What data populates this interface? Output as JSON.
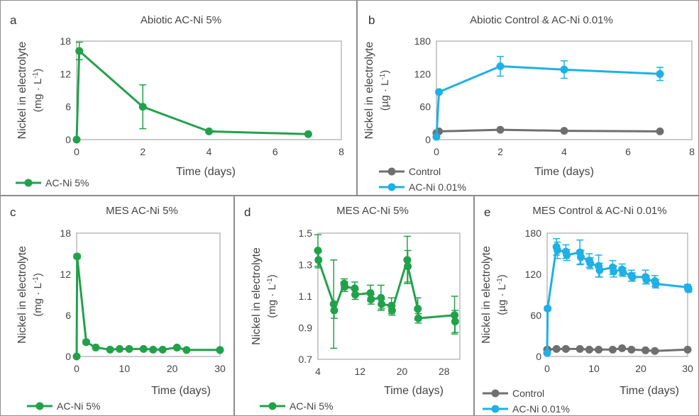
{
  "panels": [
    {
      "letter": "a",
      "title": "Abiotic AC-Ni 5%",
      "ylabel_main": "Nickel in electrolyte",
      "ylabel_unit": "(mg · L",
      "xlabel": "Time (days)",
      "yticks": [
        "0",
        "6",
        "12",
        "18"
      ],
      "xticks": [
        "0",
        "2",
        "4",
        "6",
        "8"
      ]
    },
    {
      "letter": "b",
      "title": "Abiotic Control & AC-Ni 0.01%",
      "ylabel_main": "Nickel in electrolyte",
      "ylabel_unit": "(µg · L",
      "xlabel": "Time (days)",
      "yticks": [
        "0",
        "60",
        "120",
        "180"
      ],
      "xticks": [
        "0",
        "2",
        "4",
        "6",
        "8"
      ]
    },
    {
      "letter": "c",
      "title": "MES AC-Ni 5%",
      "ylabel_main": "Nickel in electrolyte",
      "ylabel_unit": "(mg · L",
      "xlabel": "Time (days)",
      "yticks": [
        "0",
        "6",
        "12",
        "18"
      ],
      "xticks": [
        "0",
        "10",
        "20",
        "30"
      ]
    },
    {
      "letter": "d",
      "title": "MES AC-Ni 5%",
      "ylabel_main": "Nickel in electrolyte",
      "ylabel_unit": "(mg · L",
      "xlabel": "Time (days)",
      "yticks": [
        "0.7",
        "0.9",
        "1.1",
        "1.3",
        "1.5"
      ],
      "xticks": [
        "4",
        "12",
        "20",
        "28"
      ]
    },
    {
      "letter": "e",
      "title": "MES Control & AC-Ni 0.01%",
      "ylabel_main": "Nickel in electrolyte",
      "ylabel_unit": "(µg · L",
      "xlabel": "Time (days)",
      "yticks": [
        "0",
        "60",
        "120",
        "180"
      ],
      "xticks": [
        "0",
        "10",
        "20",
        "30"
      ]
    }
  ],
  "unit_exponent": "-1",
  "colors": {
    "green": "#22a14b",
    "blue": "#1fb0e6",
    "gray": "#6f6f6f",
    "frame": "#8c8c8c"
  },
  "chart_data": [
    {
      "type": "line",
      "title": "Abiotic AC-Ni 5%",
      "xlabel": "Time (days)",
      "ylabel": "Nickel in electrolyte (mg · L-1)",
      "xlim": [
        0,
        8
      ],
      "ylim": [
        0,
        18
      ],
      "legend": "bottom-left",
      "series": [
        {
          "name": "AC-Ni 5%",
          "color": "#22a14b",
          "x": [
            0,
            0.08,
            2,
            4,
            7
          ],
          "y": [
            0,
            16.2,
            6.0,
            1.5,
            1.0
          ],
          "err": [
            0,
            1.6,
            4.0,
            0.2,
            0.15
          ]
        }
      ]
    },
    {
      "type": "line",
      "title": "Abiotic Control & AC-Ni 0.01%",
      "xlabel": "Time (days)",
      "ylabel": "Nickel in electrolyte (µg · L-1)",
      "xlim": [
        0,
        8
      ],
      "ylim": [
        0,
        180
      ],
      "legend": "bottom-left",
      "series": [
        {
          "name": "Control",
          "color": "#6f6f6f",
          "x": [
            0,
            0.08,
            2,
            4,
            7
          ],
          "y": [
            12,
            15,
            18,
            16,
            15
          ],
          "err": [
            0,
            1,
            2,
            2,
            2
          ]
        },
        {
          "name": "AC-Ni 0.01%",
          "color": "#1fb0e6",
          "x": [
            0,
            0.08,
            2,
            4,
            7
          ],
          "y": [
            5,
            87,
            134,
            128,
            120
          ],
          "err": [
            0,
            3,
            18,
            16,
            12
          ]
        }
      ]
    },
    {
      "type": "line",
      "title": "MES AC-Ni 5%",
      "xlabel": "Time (days)",
      "ylabel": "Nickel in electrolyte (mg · L-1)",
      "xlim": [
        0,
        30
      ],
      "ylim": [
        0,
        18
      ],
      "legend": "bottom-left",
      "series": [
        {
          "name": "AC-Ni 5%",
          "color": "#22a14b",
          "x": [
            0,
            0.1,
            2,
            4,
            7,
            9,
            11,
            14,
            16,
            18,
            21,
            23,
            30
          ],
          "y": [
            0,
            14.6,
            2.1,
            1.3,
            1.0,
            1.1,
            1.1,
            1.1,
            1.0,
            1.0,
            1.3,
            0.95,
            0.95
          ],
          "err": [
            0,
            0.3,
            0.3,
            0.2,
            0.15,
            0.15,
            0.15,
            0.15,
            0.15,
            0.15,
            0.2,
            0.1,
            0.1
          ]
        }
      ]
    },
    {
      "type": "line",
      "title": "MES AC-Ni 5%",
      "xlabel": "Time (days)",
      "ylabel": "Nickel in electrolyte (mg · L-1)",
      "xlim": [
        4,
        31
      ],
      "ylim": [
        0.7,
        1.5
      ],
      "legend": "bottom-left",
      "series": [
        {
          "name": "AC-Ni 5%",
          "color": "#22a14b",
          "x": [
            4,
            4.1,
            7,
            7.1,
            9,
            9.1,
            11,
            11.1,
            14,
            14.1,
            16,
            16.1,
            18,
            18.1,
            21,
            21.1,
            23,
            23.1,
            30,
            30.1
          ],
          "y": [
            1.39,
            1.33,
            1.05,
            1.01,
            1.18,
            1.16,
            1.15,
            1.11,
            1.12,
            1.08,
            1.09,
            1.05,
            1.04,
            1.01,
            1.33,
            1.29,
            1.02,
            0.96,
            0.98,
            0.94
          ],
          "err": [
            0.1,
            0.05,
            0.28,
            0.05,
            0.03,
            0.03,
            0.04,
            0.03,
            0.05,
            0.03,
            0.08,
            0.03,
            0.05,
            0.03,
            0.15,
            0.1,
            0.07,
            0.03,
            0.12,
            0.07
          ]
        }
      ]
    },
    {
      "type": "line",
      "title": "MES Control & AC-Ni 0.01%",
      "xlabel": "Time (days)",
      "ylabel": "Nickel in electrolyte (µg · L-1)",
      "xlim": [
        0,
        30
      ],
      "ylim": [
        0,
        180
      ],
      "legend": "bottom-left",
      "series": [
        {
          "name": "Control",
          "color": "#6f6f6f",
          "x": [
            0,
            0.1,
            2,
            4,
            7,
            9,
            11,
            14,
            16,
            18,
            21,
            23,
            30
          ],
          "y": [
            10,
            10,
            11,
            11,
            11,
            10,
            10,
            10,
            12,
            10,
            9,
            8,
            10
          ],
          "err": [
            0,
            1,
            2,
            2,
            2,
            2,
            2,
            2,
            2,
            2,
            2,
            2,
            2
          ]
        },
        {
          "name": "AC-Ni 0.01%",
          "color": "#1fb0e6",
          "x": [
            0,
            0.1,
            2,
            2.2,
            4,
            4.2,
            7,
            7.2,
            9,
            9.2,
            11,
            11.2,
            14,
            14.2,
            16,
            16.2,
            18,
            18.2,
            21,
            21.2,
            23,
            23.2,
            30,
            30.2
          ],
          "y": [
            5,
            70,
            160,
            155,
            153,
            148,
            152,
            145,
            140,
            136,
            132,
            126,
            130,
            124,
            127,
            123,
            118,
            116,
            116,
            112,
            110,
            106,
            101,
            98
          ],
          "err": [
            0,
            3,
            12,
            12,
            10,
            8,
            18,
            10,
            10,
            8,
            16,
            10,
            10,
            8,
            8,
            6,
            8,
            6,
            10,
            6,
            8,
            6,
            4,
            4
          ]
        }
      ]
    }
  ]
}
